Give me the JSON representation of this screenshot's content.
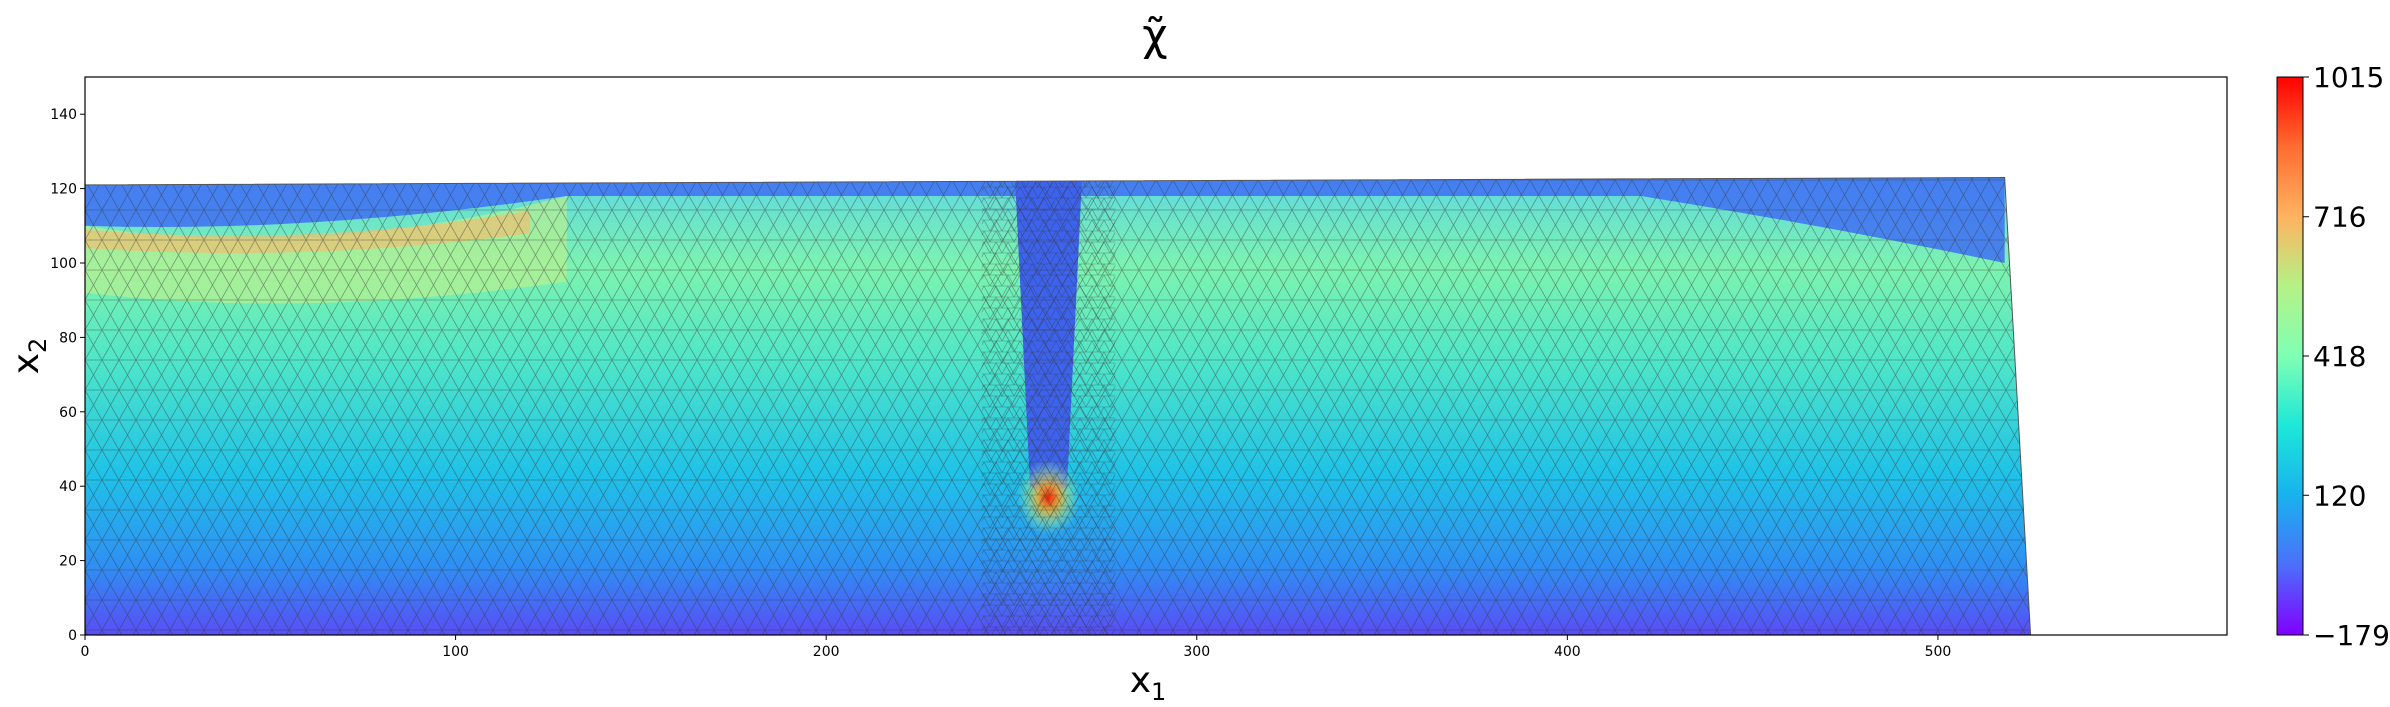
{
  "chart_data": {
    "type": "heatmap",
    "title": "χ̃",
    "xlabel": {
      "base": "x",
      "sub": "1"
    },
    "ylabel": {
      "base": "x",
      "sub": "2"
    },
    "xlim": [
      0,
      578
    ],
    "ylim": [
      0,
      150
    ],
    "xticks": [
      0,
      100,
      200,
      300,
      400,
      500
    ],
    "yticks": [
      0,
      20,
      40,
      60,
      80,
      100,
      120,
      140
    ],
    "colorbar": {
      "min": -179,
      "max": 1015,
      "ticks": [
        -179,
        120,
        418,
        716,
        1015
      ],
      "tick_labels": [
        "−179",
        "120",
        "418",
        "716",
        "1015"
      ],
      "colormap": "rainbow"
    },
    "domain_outline": [
      [
        0,
        0
      ],
      [
        525,
        0
      ],
      [
        518,
        123
      ],
      [
        0,
        121
      ]
    ],
    "notch": {
      "x_center": 260,
      "y_bottom": 40,
      "width": 18
    },
    "grid": false,
    "mesh_overlay": true
  }
}
